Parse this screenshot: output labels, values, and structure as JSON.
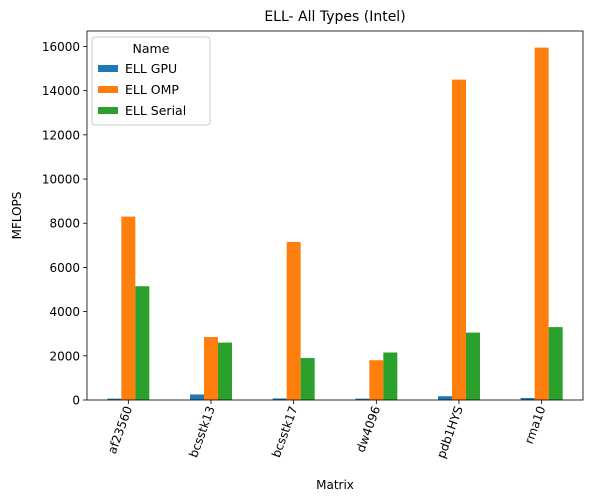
{
  "chart_data": {
    "type": "bar",
    "title": "ELL- All Types (Intel)",
    "xlabel": "Matrix",
    "ylabel": "MFLOPS",
    "categories": [
      "af23560",
      "bcsstk13",
      "bcsstk17",
      "dw4096",
      "pdb1HYS",
      "rma10"
    ],
    "series": [
      {
        "name": "ELL GPU",
        "color": "#1f77b4",
        "values": [
          60,
          250,
          70,
          60,
          170,
          90
        ]
      },
      {
        "name": "ELL OMP",
        "color": "#ff7f0e",
        "values": [
          8300,
          2850,
          7150,
          1800,
          14500,
          15950
        ]
      },
      {
        "name": "ELL Serial",
        "color": "#2ca02c",
        "values": [
          5150,
          2600,
          1900,
          2150,
          3050,
          3300
        ]
      }
    ],
    "ylim": [
      0,
      16700
    ],
    "yticks": [
      0,
      2000,
      4000,
      6000,
      8000,
      10000,
      12000,
      14000,
      16000
    ],
    "legend": {
      "title": "Name",
      "placement": "top-left"
    },
    "grid": false,
    "xtick_rotation": 70
  }
}
